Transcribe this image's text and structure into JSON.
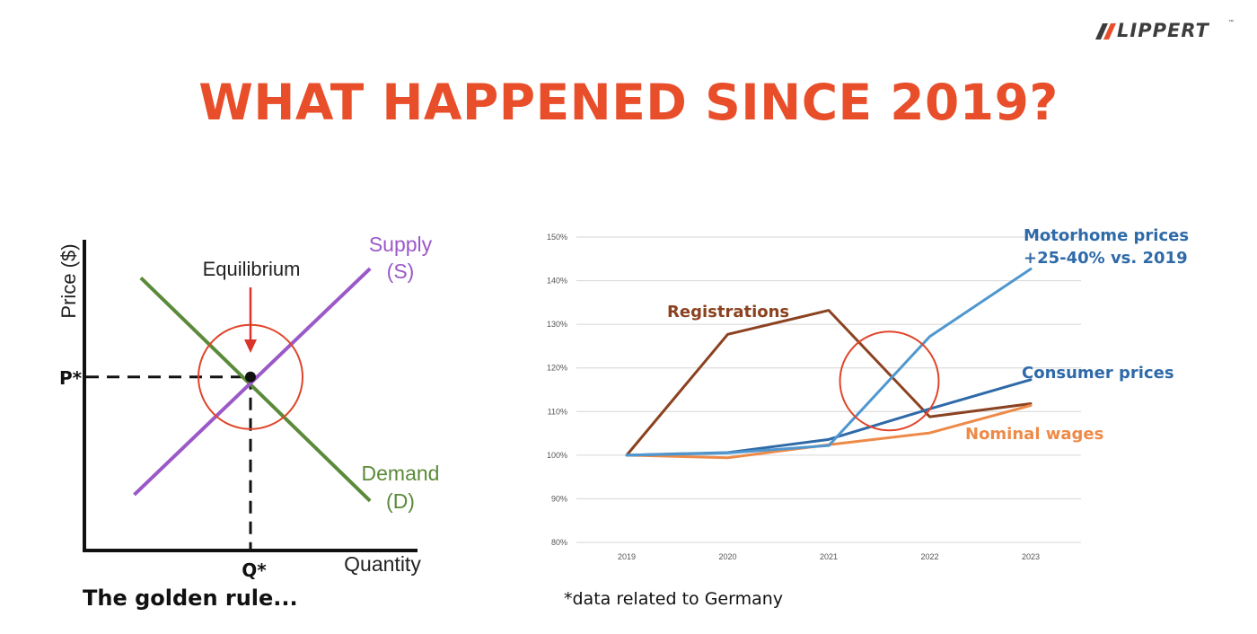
{
  "logo": {
    "text": "LIPPERT",
    "tm": "™"
  },
  "title": "WHAT HAPPENED SINCE 2019?",
  "captions": {
    "left": "The golden rule...",
    "right": "*data related to Germany"
  },
  "colors": {
    "title": "#e84e2a",
    "supply": "#9b59c8",
    "demand": "#5a8a3a",
    "registrations": "#8b4220",
    "motorhome": "#4f97cf",
    "consumer": "#2f6aa8",
    "wages": "#ee8a48",
    "circle": "#e0452a",
    "arrow": "#d9352a"
  },
  "chart_data": [
    {
      "type": "line",
      "title": "",
      "xlabel": "Quantity",
      "ylabel": "Price ($)",
      "xlim": [
        0,
        10
      ],
      "ylim": [
        0,
        10
      ],
      "series": [
        {
          "name": "Supply (S)",
          "label_line1": "Supply",
          "label_line2": "(S)",
          "x": [
            1.5,
            8.6
          ],
          "y": [
            1.8,
            9.1
          ]
        },
        {
          "name": "Demand (D)",
          "label_line1": "Demand",
          "label_line2": "(D)",
          "x": [
            1.7,
            8.6
          ],
          "y": [
            8.8,
            1.6
          ]
        }
      ],
      "equilibrium": {
        "label": "Equilibrium",
        "x": 5,
        "y": 5.6,
        "p_label": "P*",
        "q_label": "Q*"
      }
    },
    {
      "type": "line",
      "title": "",
      "categories": [
        "2019",
        "2020",
        "2021",
        "2022",
        "2023"
      ],
      "y_ticks": [
        "80%",
        "90%",
        "100%",
        "110%",
        "120%",
        "130%",
        "140%",
        "150%"
      ],
      "ylim": [
        80,
        150
      ],
      "grid": true,
      "series": [
        {
          "name": "Registrations",
          "values": [
            100,
            127.7,
            133.2,
            108.8,
            111.8
          ]
        },
        {
          "name": "Motorhome prices",
          "label_line1": "Motorhome prices",
          "label_line2": "+25-40% vs. 2019",
          "values": [
            100,
            100.5,
            102.2,
            127.2,
            142.7
          ]
        },
        {
          "name": "Consumer prices",
          "values": [
            100,
            100.6,
            103.6,
            110.6,
            117.3
          ]
        },
        {
          "name": "Nominal wages",
          "values": [
            100,
            99.4,
            102.4,
            105.1,
            111.4
          ]
        }
      ],
      "annotation": {
        "type": "circle",
        "center": {
          "year_index": 2.6,
          "value": 117
        }
      }
    }
  ]
}
